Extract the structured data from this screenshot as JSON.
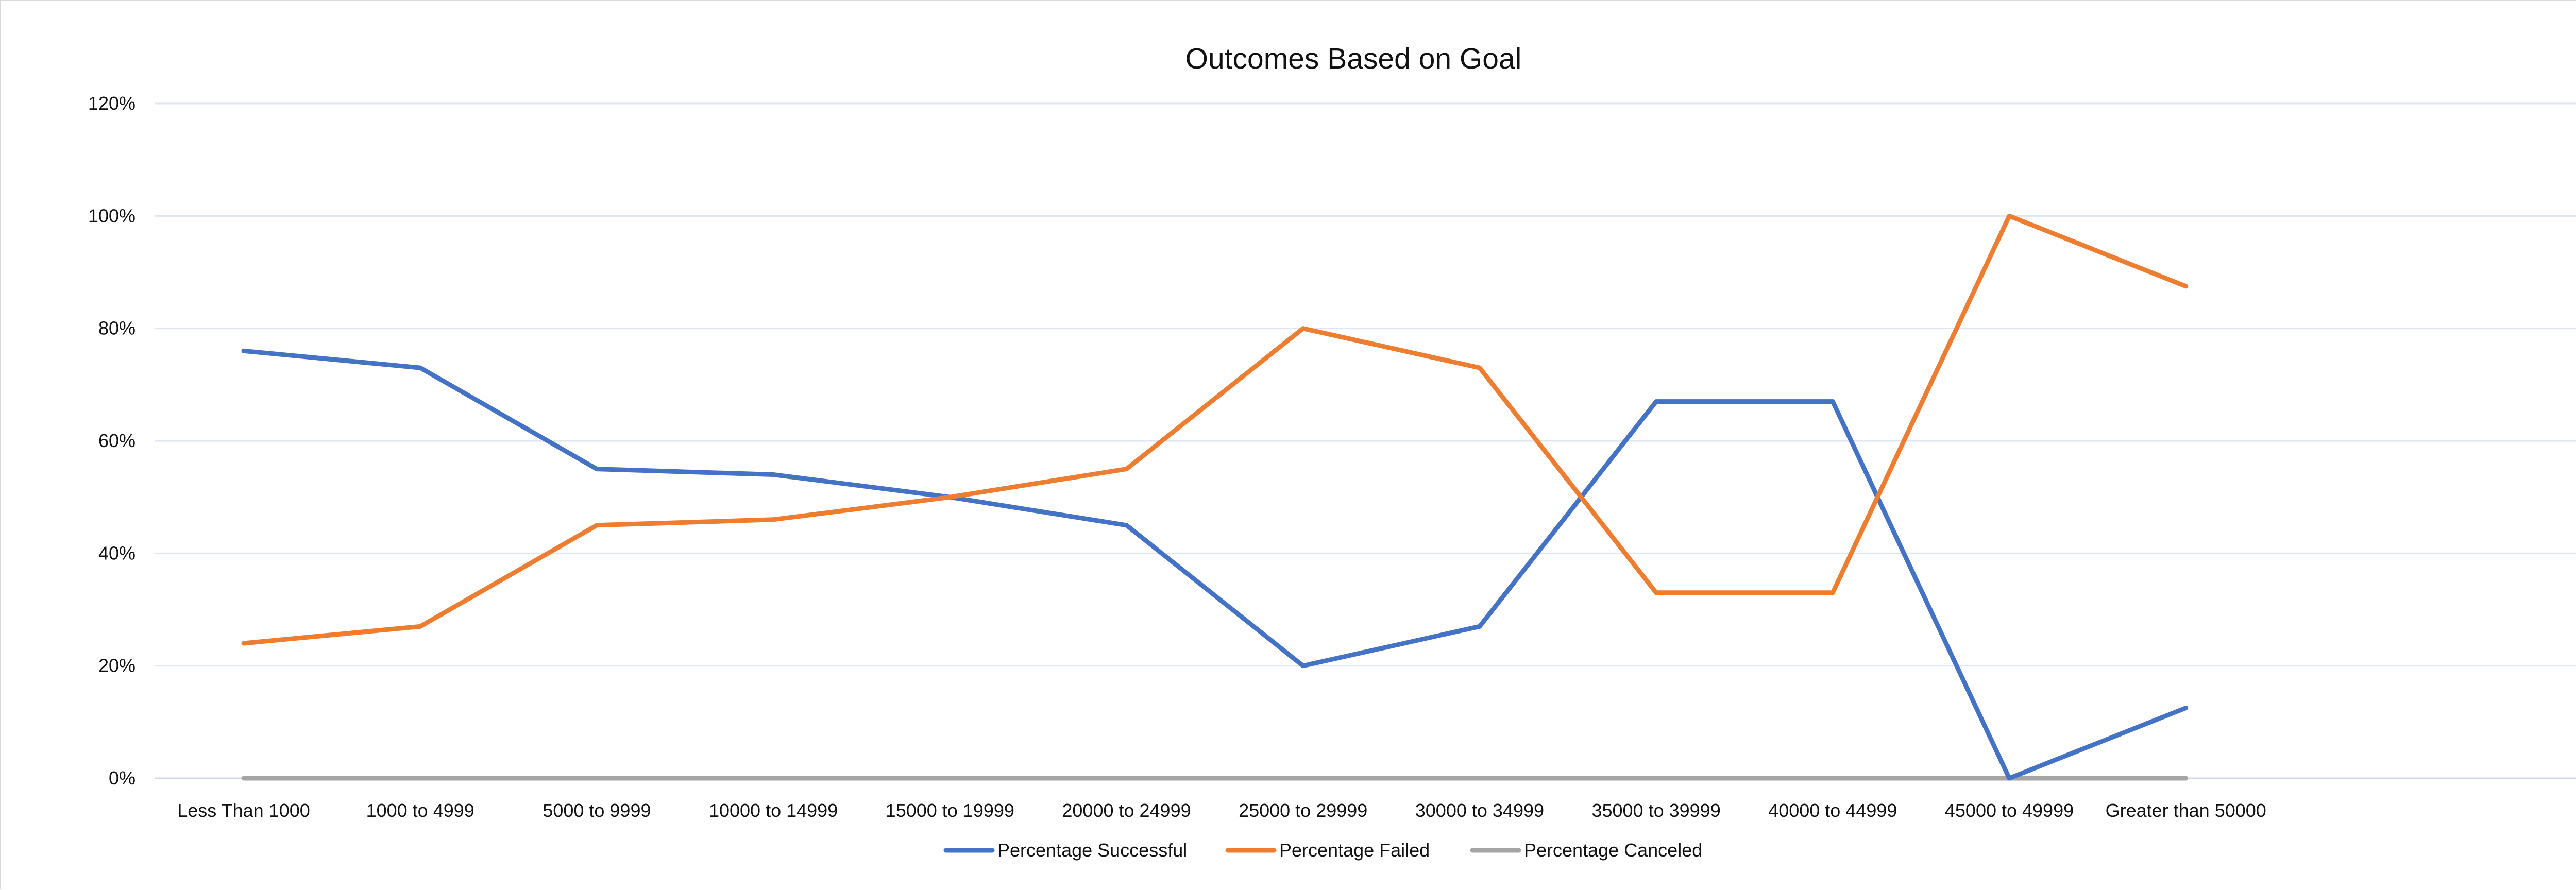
{
  "chart_data": {
    "type": "line",
    "title": "Outcomes Based on Goal",
    "xlabel": "",
    "ylabel": "",
    "categories": [
      "Less Than 1000",
      "1000 to 4999",
      "5000 to 9999",
      "10000 to 14999",
      "15000 to 19999",
      "20000 to 24999",
      "25000 to 29999",
      "30000 to 34999",
      "35000 to 39999",
      "40000 to 44999",
      "45000 to 49999",
      "Greater than 50000"
    ],
    "series": [
      {
        "name": "Percentage Successful",
        "color": "#4472c4",
        "values": [
          76,
          73,
          55,
          54,
          50,
          45,
          20,
          27,
          67,
          67,
          0,
          12.5
        ]
      },
      {
        "name": "Percentage Failed",
        "color": "#ed7d31",
        "values": [
          24,
          27,
          45,
          46,
          50,
          55,
          80,
          73,
          33,
          33,
          100,
          87.5
        ]
      },
      {
        "name": "Percentage Canceled",
        "color": "#a5a5a5",
        "values": [
          0,
          0,
          0,
          0,
          0,
          0,
          0,
          0,
          0,
          0,
          0,
          0
        ]
      }
    ],
    "ylim": [
      0,
      120
    ],
    "yticks": [
      0,
      20,
      40,
      60,
      80,
      100,
      120
    ],
    "ytick_labels": [
      "0%",
      "20%",
      "40%",
      "60%",
      "80%",
      "100%",
      "120%"
    ],
    "grid": true,
    "legend_position": "bottom"
  }
}
